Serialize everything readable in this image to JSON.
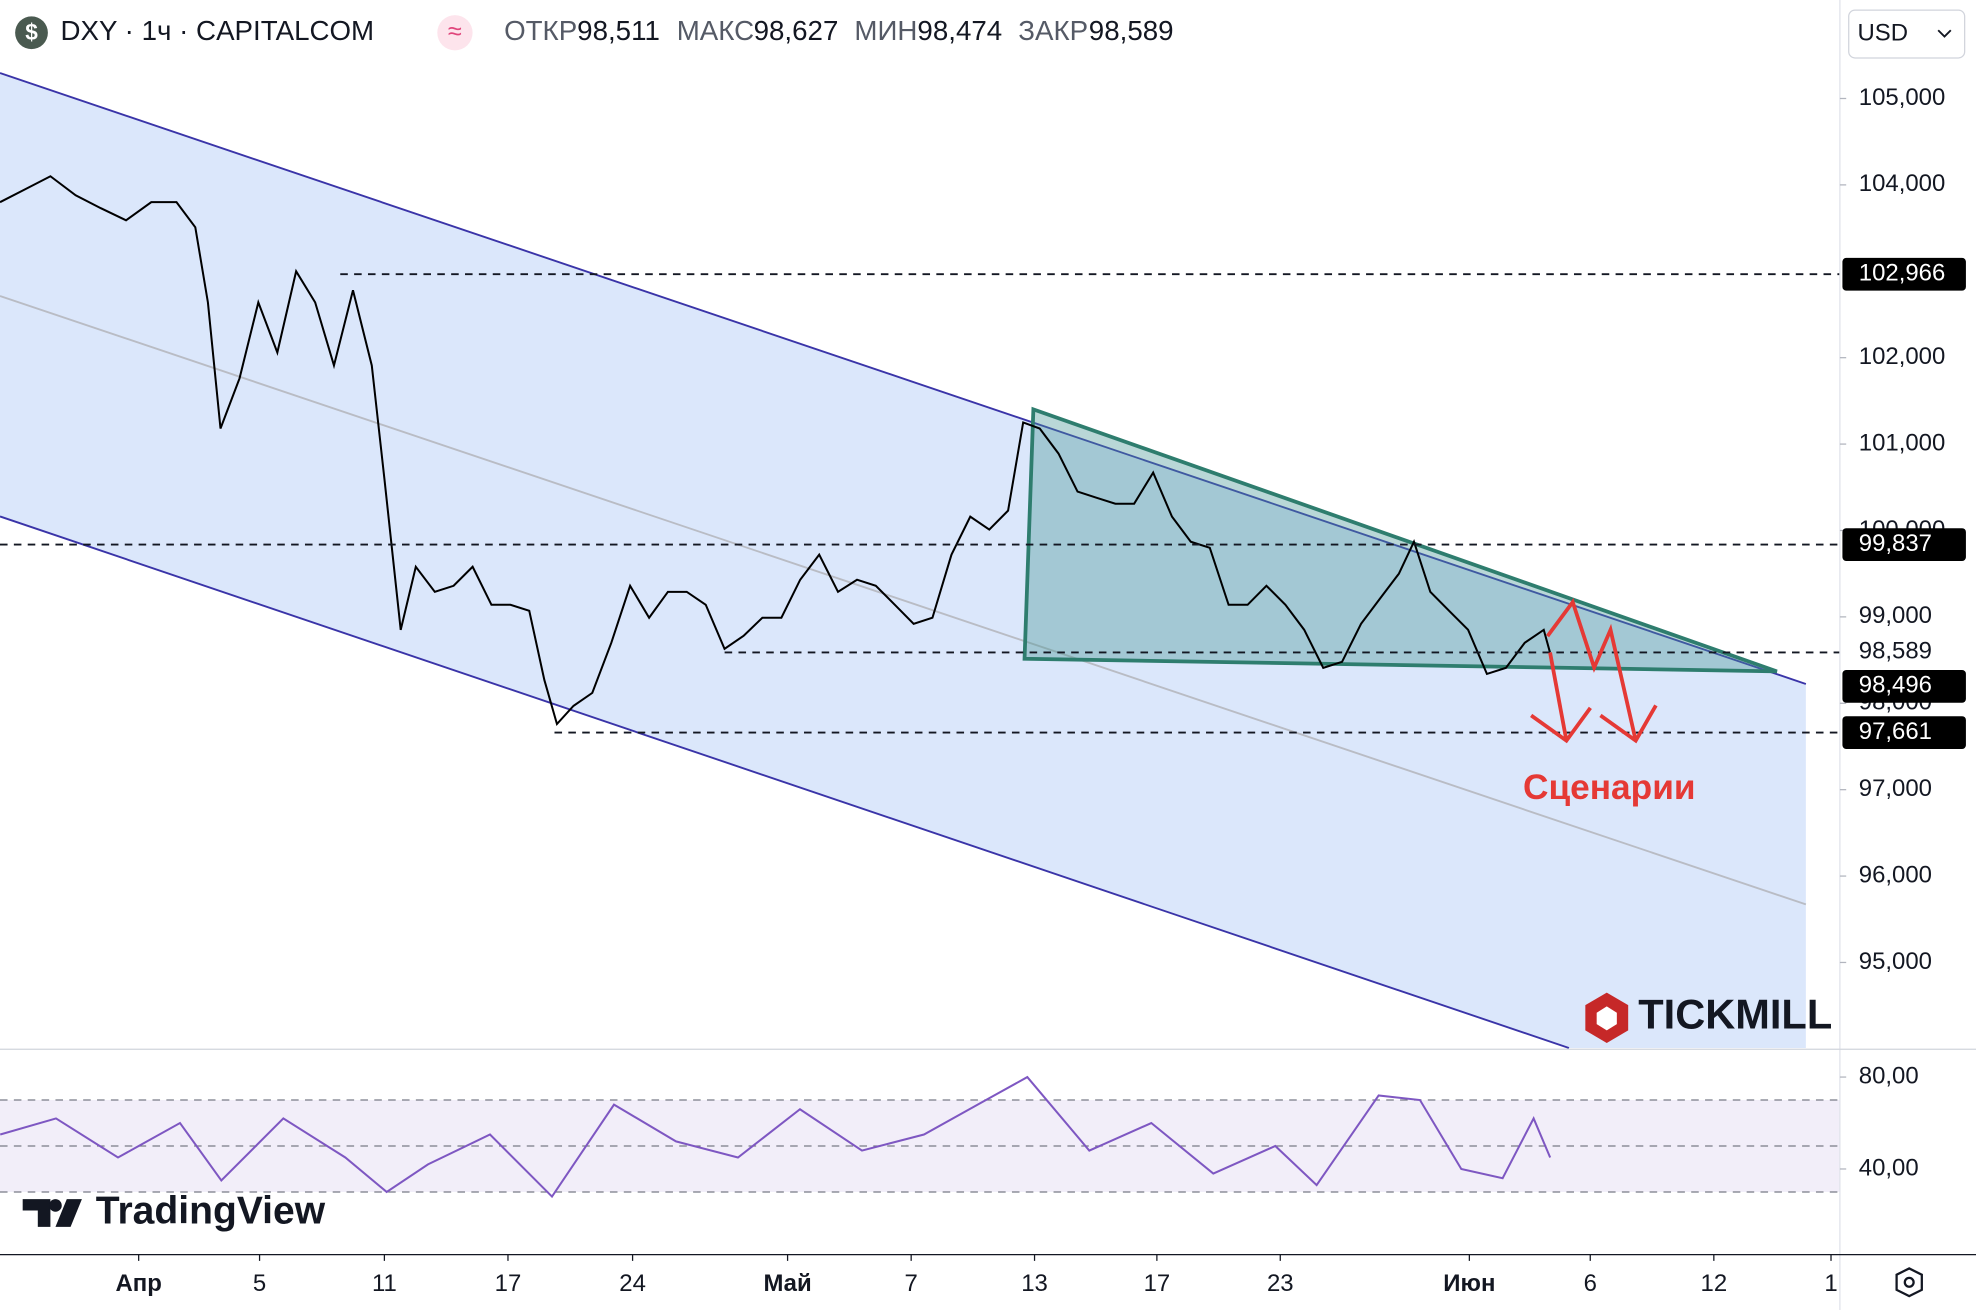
{
  "header": {
    "symbol": "DXY · 1ч · CAPITALCOM",
    "icon": "$",
    "indicator_icon": "≈",
    "ohlc": [
      {
        "label": "ОТКР",
        "value": "98,511"
      },
      {
        "label": "МАКС",
        "value": "98,627"
      },
      {
        "label": "МИН",
        "value": "98,474"
      },
      {
        "label": "ЗАКР",
        "value": "98,589"
      }
    ],
    "currency": "USD"
  },
  "branding": {
    "broker": "TICKMILL",
    "platform": "TradingView"
  },
  "chart_data": {
    "type": "line",
    "annotation": "Сценарии",
    "x": [
      -6.71,
      -5.49,
      -4.27,
      -3.05,
      -1.83,
      -0.61,
      0.61,
      1.83,
      2.74,
      3.35,
      3.96,
      4.88,
      5.79,
      6.71,
      7.62,
      8.54,
      9.45,
      10.37,
      11.28,
      11.89,
      12.68,
      13.41,
      14.33,
      15.24,
      16.16,
      17.07,
      17.99,
      18.9,
      19.63,
      20.24,
      21.04,
      21.95,
      22.87,
      23.78,
      24.7,
      25.61,
      26.52,
      27.44,
      28.35,
      29.27,
      30.18,
      31.1,
      32.01,
      32.93,
      33.84,
      34.76,
      35.67,
      36.59,
      37.5,
      38.41,
      39.33,
      40.24,
      41.16,
      42.07,
      42.8,
      43.6,
      44.51,
      45.43,
      46.34,
      47.26,
      48.17,
      49.09,
      50,
      50.91,
      51.83,
      52.74,
      53.66,
      54.57,
      55.49,
      56.4,
      57.32,
      58.23,
      59.15,
      60.06,
      60.98,
      61.71,
      62.5,
      63.41,
      64.33,
      65.24,
      66.16,
      67.07,
      67.99,
      68.29
    ],
    "series": [
      {
        "name": "DXY",
        "color": "#000000",
        "values": [
          103.8,
          103.95,
          104.1,
          103.88,
          103.73,
          103.59,
          103.8,
          103.8,
          103.51,
          102.64,
          101.18,
          101.76,
          102.64,
          102.06,
          103.0,
          102.64,
          101.91,
          102.78,
          101.91,
          100.6,
          98.85,
          99.58,
          99.29,
          99.36,
          99.58,
          99.14,
          99.14,
          99.07,
          98.27,
          97.76,
          97.97,
          98.12,
          98.7,
          99.36,
          98.99,
          99.29,
          99.29,
          99.14,
          98.63,
          98.78,
          98.99,
          98.99,
          99.43,
          99.72,
          99.29,
          99.43,
          99.36,
          99.14,
          98.92,
          98.99,
          99.72,
          100.16,
          100.01,
          100.23,
          101.25,
          101.18,
          100.89,
          100.45,
          100.38,
          100.31,
          100.31,
          100.67,
          100.16,
          99.87,
          99.8,
          99.14,
          99.14,
          99.36,
          99.14,
          98.85,
          98.41,
          98.48,
          98.92,
          99.21,
          99.5,
          99.87,
          99.29,
          99.07,
          98.85,
          98.34,
          98.41,
          98.7,
          98.85,
          98.59
        ]
      }
    ],
    "xlim": [
      -6.71,
      82.32
    ],
    "xticks": [
      {
        "value": 0,
        "label": "Апр"
      },
      {
        "value": 5.85,
        "label": "5"
      },
      {
        "value": 11.89,
        "label": "11"
      },
      {
        "value": 17.87,
        "label": "17"
      },
      {
        "value": 23.9,
        "label": "24"
      },
      {
        "value": 31.4,
        "label": "Май"
      },
      {
        "value": 37.38,
        "label": "7"
      },
      {
        "value": 43.35,
        "label": "13"
      },
      {
        "value": 49.27,
        "label": "17"
      },
      {
        "value": 55.24,
        "label": "23"
      },
      {
        "value": 64.39,
        "label": "Июн"
      },
      {
        "value": 70.24,
        "label": "6"
      },
      {
        "value": 76.22,
        "label": "12"
      },
      {
        "value": 81.89,
        "label": "1"
      }
    ],
    "ylim": [
      94.01,
      106.14
    ],
    "yticks": [
      {
        "value": 105,
        "label": "105,000"
      },
      {
        "value": 104,
        "label": "104,000"
      },
      {
        "value": 102,
        "label": "102,000"
      },
      {
        "value": 101,
        "label": "101,000"
      },
      {
        "value": 100,
        "label": "100,000"
      },
      {
        "value": 99,
        "label": "99,000"
      },
      {
        "value": 98,
        "label": "98,000"
      },
      {
        "value": 97,
        "label": "97,000"
      },
      {
        "value": 96,
        "label": "96,000"
      },
      {
        "value": 95,
        "label": "95,000"
      }
    ],
    "price_tags": [
      {
        "value": 102.966,
        "label": "102,966",
        "style": "box"
      },
      {
        "value": 99.837,
        "label": "99,837",
        "style": "box"
      },
      {
        "value": 98.589,
        "label": "98,589",
        "style": "plain"
      },
      {
        "value": 98.496,
        "label": "98,496",
        "style": "box"
      },
      {
        "value": 97.661,
        "label": "97,661",
        "style": "box"
      }
    ],
    "rsi": {
      "color": "#7e57c2",
      "x": [
        -6.7,
        -4,
        -1,
        2,
        4,
        7,
        10,
        12,
        14,
        17,
        20,
        23,
        26,
        29,
        32,
        35,
        38,
        41,
        43,
        46,
        49,
        52,
        55,
        57,
        60,
        62,
        64,
        66,
        67.5,
        68.3
      ],
      "values": [
        55,
        62,
        45,
        60,
        35,
        62,
        45,
        30,
        42,
        55,
        28,
        68,
        52,
        45,
        66,
        48,
        55,
        70,
        80,
        48,
        60,
        38,
        50,
        33,
        72,
        70,
        40,
        36,
        62,
        45
      ],
      "ylim": [
        3.3,
        91.0
      ],
      "yticks": [
        {
          "value": 80,
          "label": "80,00"
        },
        {
          "value": 40,
          "label": "40,00"
        }
      ],
      "bands": [
        70,
        50,
        30
      ]
    }
  }
}
